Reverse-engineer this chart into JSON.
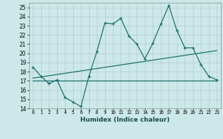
{
  "xlabel": "Humidex (Indice chaleur)",
  "bg_color": "#cce8e8",
  "line_color": "#1a6e6a",
  "xlim": [
    -0.5,
    23.5
  ],
  "ylim": [
    14,
    25.5
  ],
  "xticks": [
    0,
    1,
    2,
    3,
    4,
    5,
    6,
    7,
    8,
    9,
    10,
    11,
    12,
    13,
    14,
    15,
    16,
    17,
    18,
    19,
    20,
    21,
    22,
    23
  ],
  "yticks": [
    14,
    15,
    16,
    17,
    18,
    19,
    20,
    21,
    22,
    23,
    24,
    25
  ],
  "main_x": [
    0,
    1,
    2,
    3,
    4,
    5,
    6,
    7,
    8,
    9,
    10,
    11,
    12,
    13,
    14,
    15,
    16,
    17,
    18,
    19,
    20,
    21,
    22,
    23
  ],
  "main_y": [
    18.5,
    17.5,
    16.7,
    17.1,
    15.2,
    14.7,
    14.2,
    17.5,
    20.2,
    23.3,
    23.2,
    23.8,
    21.9,
    21.0,
    19.4,
    21.1,
    23.2,
    25.2,
    22.5,
    20.6,
    20.6,
    18.8,
    17.5,
    17.1
  ],
  "line1_x": [
    0,
    23
  ],
  "line1_y": [
    17.0,
    17.0
  ],
  "line2_x": [
    0,
    23
  ],
  "line2_y": [
    17.3,
    20.3
  ]
}
